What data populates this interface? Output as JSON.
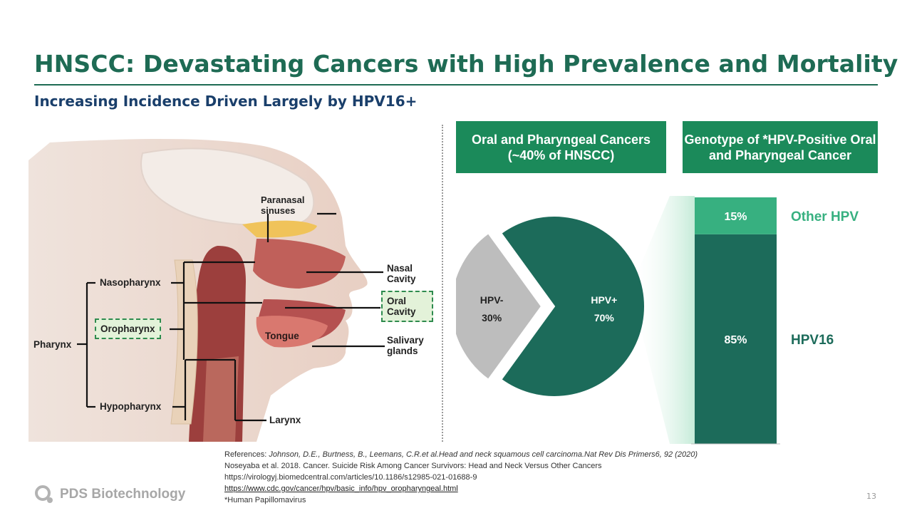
{
  "header": {
    "title": "HNSCC: Devastating Cancers with High Prevalence and Mortality",
    "subtitle": "Increasing Incidence Driven Largely by HPV16+"
  },
  "anatomy": {
    "labels": {
      "pharynx": "Pharynx",
      "nasopharynx": "Nasopharynx",
      "oropharynx": "Oropharynx",
      "hypopharynx": "Hypopharynx",
      "paranasal": "Paranasal sinuses",
      "nasal_cavity": "Nasal Cavity",
      "oral_cavity": "Oral Cavity",
      "salivary": "Salivary glands",
      "tongue": "Tongue",
      "larynx": "Larynx"
    }
  },
  "panels": {
    "left_header": "Oral and Pharyngeal Cancers (~40% of HNSCC)",
    "right_header": "Genotype of *HPV-Positive Oral and Pharyngeal Cancer"
  },
  "chart_data": [
    {
      "type": "pie",
      "slices": [
        {
          "name": "HPV-",
          "value": 30,
          "label": "30%",
          "color": "#bdbdbd"
        },
        {
          "name": "HPV+",
          "value": 70,
          "label": "70%",
          "color": "#1c6b5a"
        }
      ]
    },
    {
      "type": "bar",
      "stacked": true,
      "series": [
        {
          "name": "HPV16",
          "value": 85,
          "label": "85%",
          "color": "#1c6b5a"
        },
        {
          "name": "Other HPV",
          "value": 15,
          "label": "15%",
          "color": "#37b080"
        }
      ]
    }
  ],
  "references": {
    "prefix": "References: ",
    "ref1": "Johnson, D.E., Burtness, B., Leemans, C.R.et al.Head and neck squamous cell carcinoma.Nat Rev Dis Primers6, 92 (2020)",
    "ref2": "Noseyaba et al. 2018. Cancer. Suicide Risk Among Cancer Survivors: Head and Neck Versus Other Cancers",
    "ref3": "https://virologyj.biomedcentral.com/articles/10.1186/s12985-021-01688-9",
    "ref4": "https://www.cdc.gov/cancer/hpv/basic_info/hpv_oropharyngeal.html",
    "footnote": "*Human Papillomavirus"
  },
  "footer": {
    "logo_text": "PDS Biotechnology",
    "page_number": "13"
  },
  "colors": {
    "title": "#1e6b54",
    "subtitle": "#1a3f6b",
    "header_box": "#1b8a5a",
    "dark_green": "#1c6b5a",
    "light_green": "#37b080"
  }
}
